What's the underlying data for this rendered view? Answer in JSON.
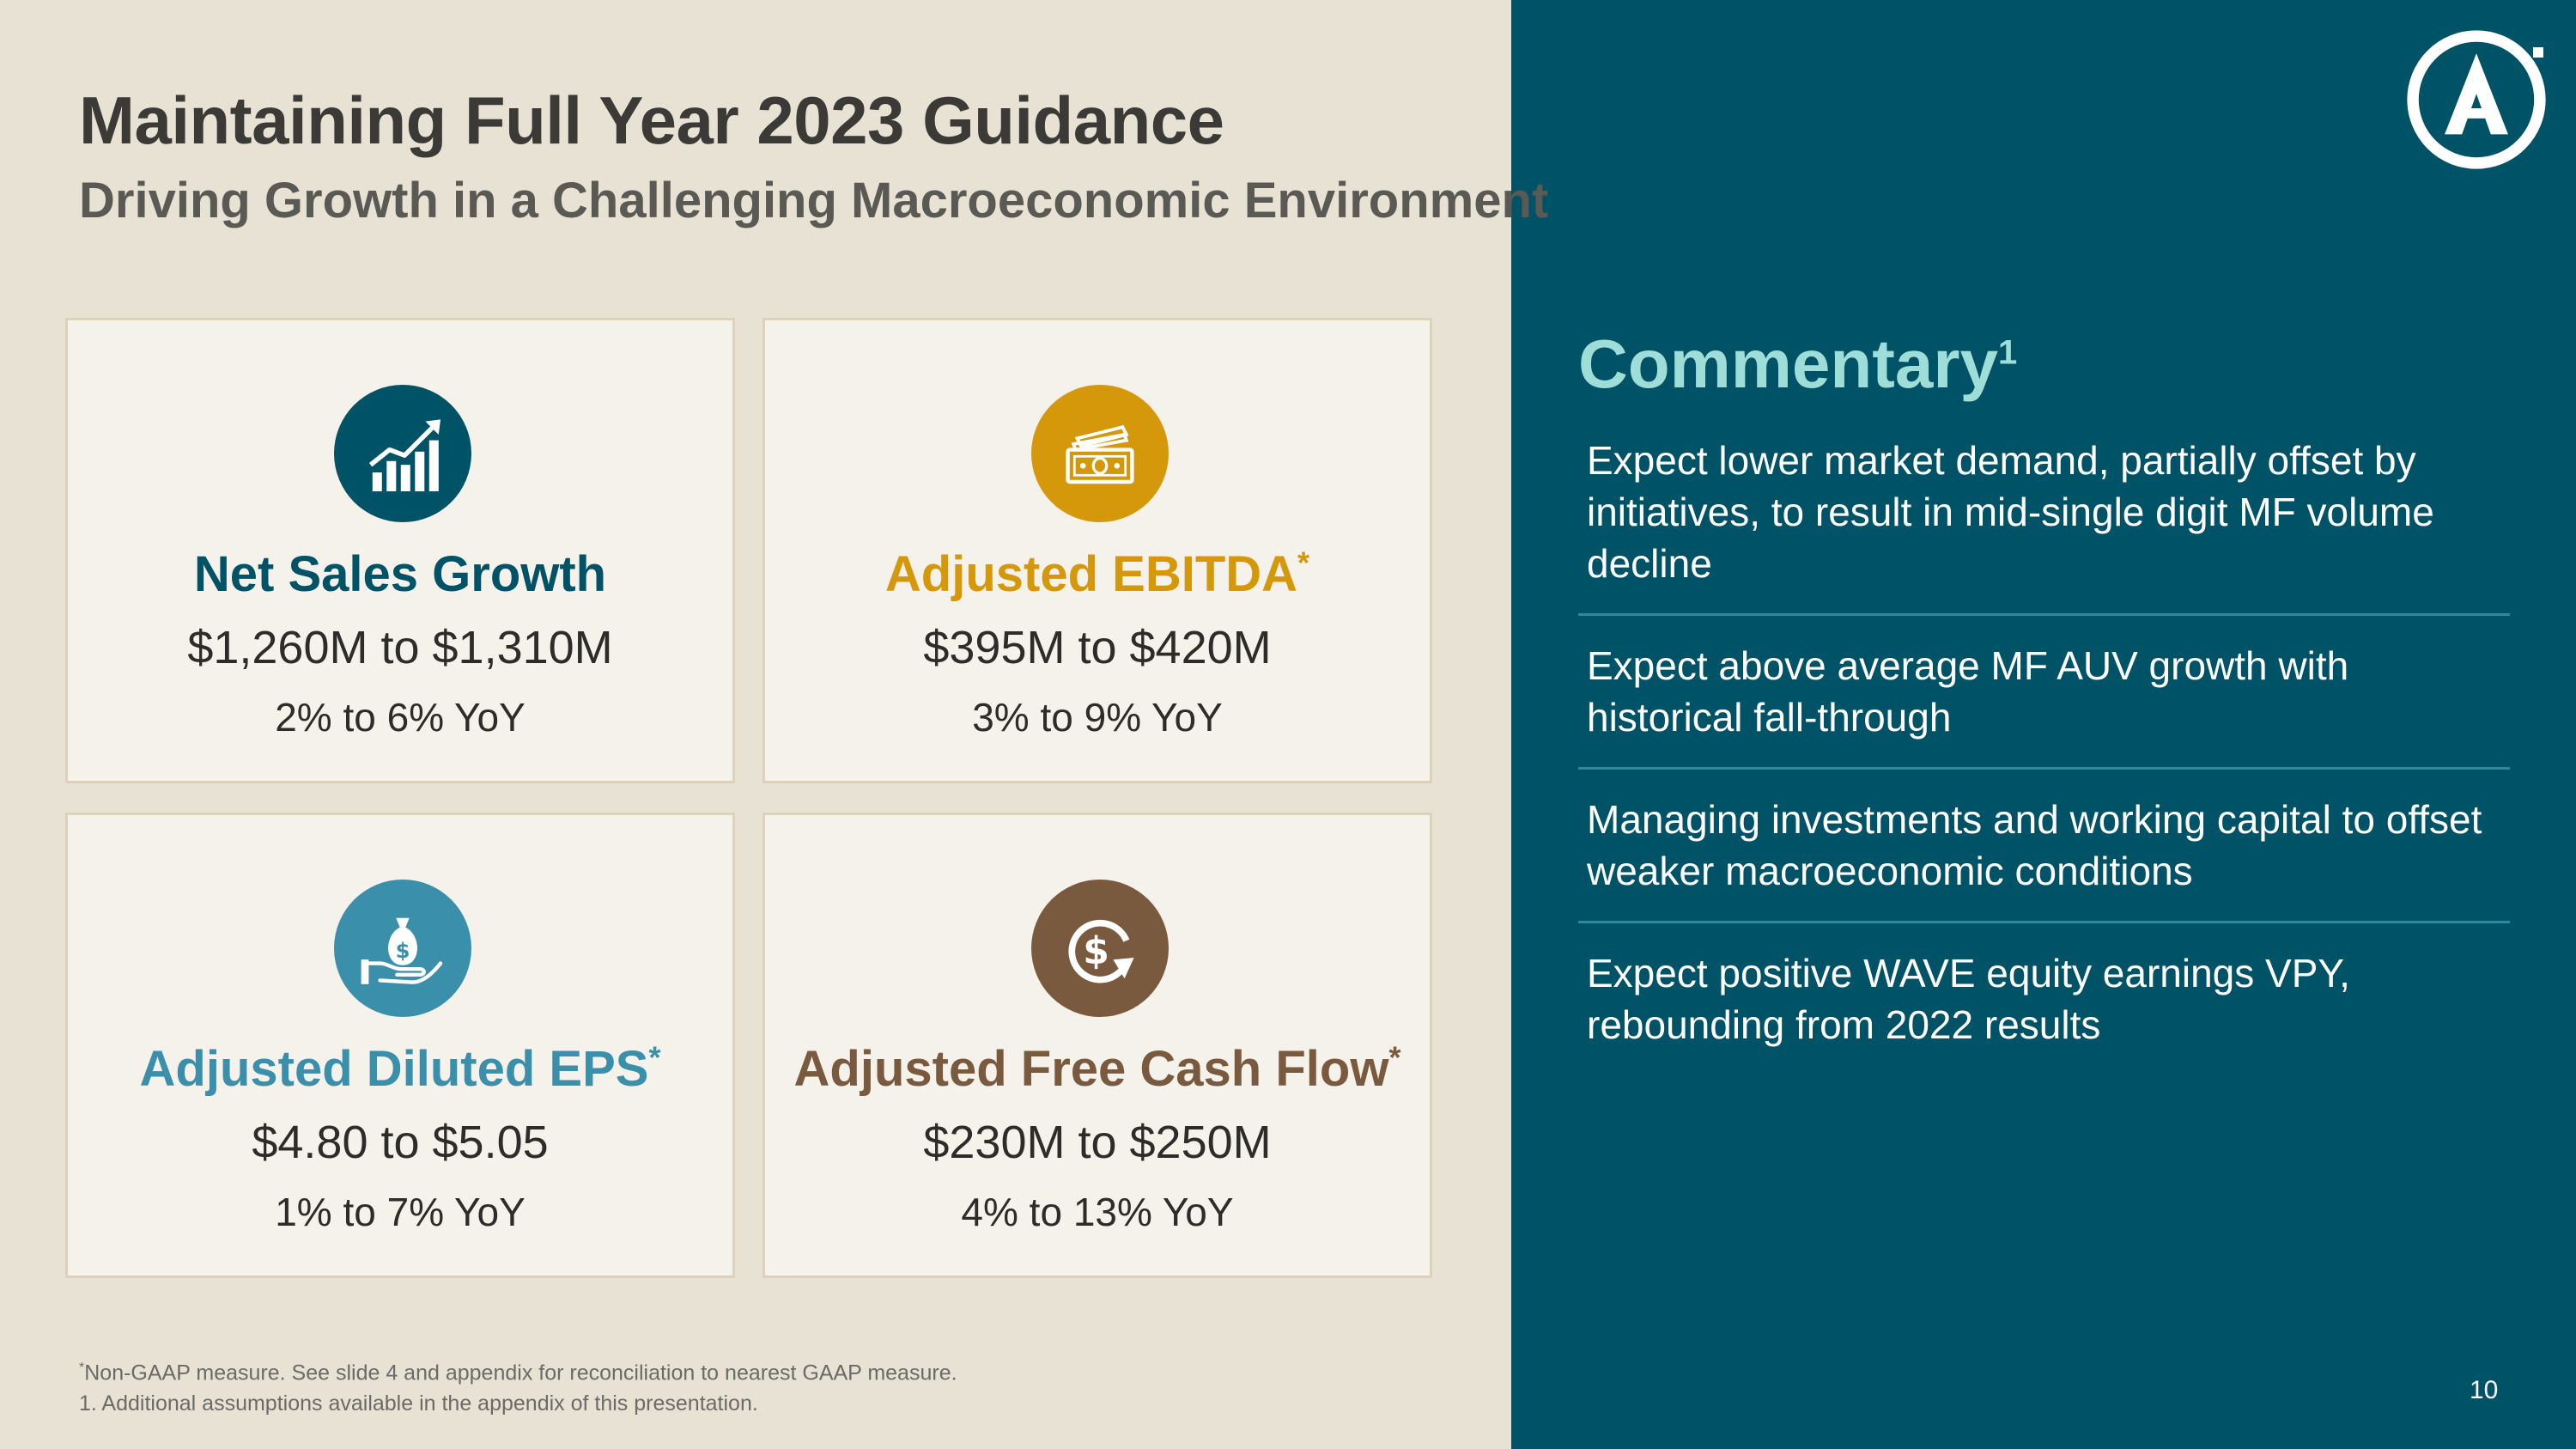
{
  "header": {
    "title": "Maintaining Full Year 2023 Guidance",
    "subtitle": "Driving Growth in a Challenging Macroeconomic Environment"
  },
  "cards": [
    {
      "label": "Net Sales Growth",
      "asterisk": "",
      "range": "$1,260M to $1,310M",
      "yoy": "2% to 6% YoY",
      "color": "#005266",
      "icon": "growth-chart-icon"
    },
    {
      "label": "Adjusted EBITDA",
      "asterisk": "*",
      "range": "$395M to $420M",
      "yoy": "3% to 9% YoY",
      "color": "#d4980a",
      "icon": "cash-stack-icon"
    },
    {
      "label": "Adjusted Diluted EPS",
      "asterisk": "*",
      "range": "$4.80 to $5.05",
      "yoy": "1% to 7% YoY",
      "color": "#3a8fab",
      "icon": "money-bag-hand-icon"
    },
    {
      "label": "Adjusted Free Cash Flow",
      "asterisk": "*",
      "range": "$230M to $250M",
      "yoy": "4% to 13% YoY",
      "color": "#7a5a3e",
      "icon": "dollar-cycle-icon"
    }
  ],
  "commentary": {
    "title": "Commentary",
    "footnote_ref": "1",
    "items": [
      "Expect lower market demand, partially offset by initiatives, to result in mid-single digit MF volume decline",
      "Expect above average MF AUV growth with historical fall-through",
      "Managing investments and working capital to offset weaker macroeconomic conditions",
      "Expect positive WAVE equity earnings VPY, rebounding from 2022 results"
    ]
  },
  "footnotes": {
    "asterisk_mark": "*",
    "line1": "Non-GAAP measure. See slide 4 and appendix for reconciliation to nearest GAAP measure.",
    "line2": "1. Additional assumptions available in the appendix of this presentation."
  },
  "page_number": "10",
  "colors": {
    "left_background": "#e8e2d5",
    "right_background": "#005266",
    "card_background": "#f5f2eb",
    "card_border": "#dcd2ba",
    "commentary_title": "#9fded8",
    "divider": "#2e8a9b"
  }
}
